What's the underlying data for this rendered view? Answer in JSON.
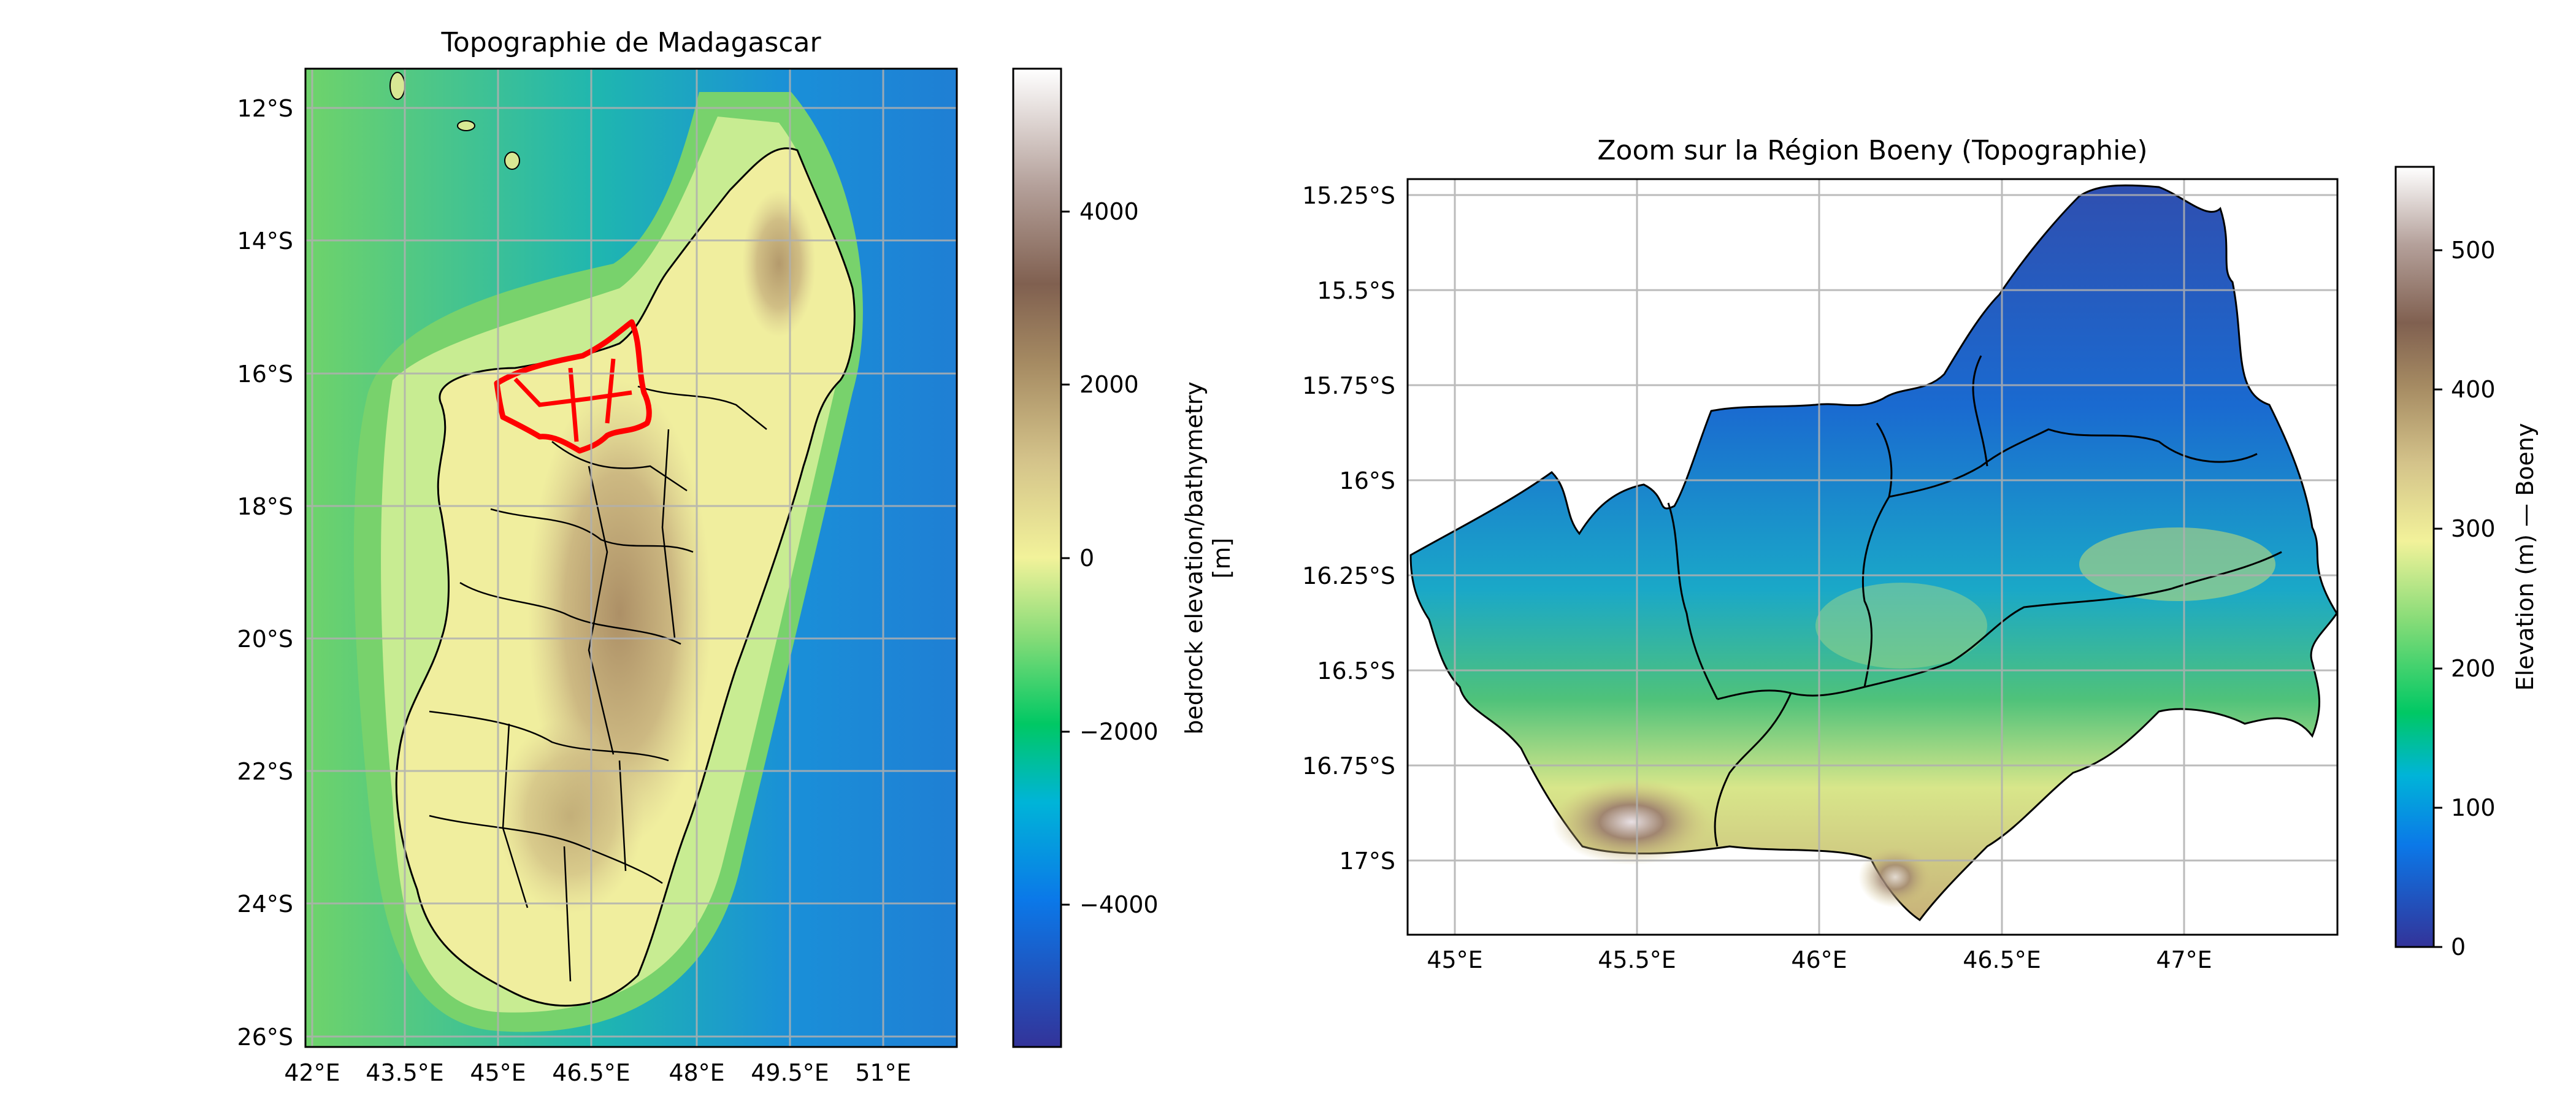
{
  "chart_data": [
    {
      "type": "heatmap",
      "title": "Topographie de Madagascar",
      "xticks": [
        "42°E",
        "43.5°E",
        "45°E",
        "46.5°E",
        "48°E",
        "49.5°E",
        "51°E"
      ],
      "xtick_values": [
        42,
        43.5,
        45,
        46.5,
        48,
        49.5,
        51
      ],
      "yticks": [
        "12°S",
        "14°S",
        "16°S",
        "18°S",
        "20°S",
        "22°S",
        "24°S",
        "26°S"
      ],
      "ytick_values": [
        -12,
        -14,
        -16,
        -18,
        -20,
        -22,
        -24,
        -26
      ],
      "xlim": [
        41.9,
        53.3
      ],
      "ylim": [
        -26.1,
        -11.4
      ],
      "grid": true,
      "colorbar": {
        "label_line1": "bedrock elevation/bathymetry",
        "label_line2": "[m]",
        "ticks": [
          "4000",
          "2000",
          "0",
          "−2000",
          "−4000"
        ],
        "tick_values": [
          4000,
          2000,
          0,
          -2000,
          -4000
        ],
        "range": [
          -5700,
          5700
        ],
        "colormap": "terrain"
      },
      "highlight": {
        "region": "Boeny",
        "color": "#ff0000"
      }
    },
    {
      "type": "heatmap",
      "title": "Zoom sur la Région Boeny (Topographie)",
      "xticks": [
        "45°E",
        "45.5°E",
        "46°E",
        "46.5°E",
        "47°E"
      ],
      "xtick_values": [
        45,
        45.5,
        46,
        46.5,
        47
      ],
      "yticks": [
        "15.25°S",
        "15.5°S",
        "15.75°S",
        "16°S",
        "16.25°S",
        "16.5°S",
        "16.75°S",
        "17°S"
      ],
      "ytick_values": [
        -15.25,
        -15.5,
        -15.75,
        -16,
        -16.25,
        -16.5,
        -16.75,
        -17
      ],
      "xlim": [
        44.87,
        47.42
      ],
      "ylim": [
        -17.2,
        -15.2
      ],
      "grid": true,
      "colorbar": {
        "label": "Elevation (m) — Boeny",
        "ticks": [
          "0",
          "100",
          "200",
          "300",
          "400",
          "500"
        ],
        "tick_values": [
          0,
          100,
          200,
          300,
          400,
          500
        ],
        "range": [
          0,
          560
        ],
        "colormap": "terrain"
      }
    }
  ]
}
